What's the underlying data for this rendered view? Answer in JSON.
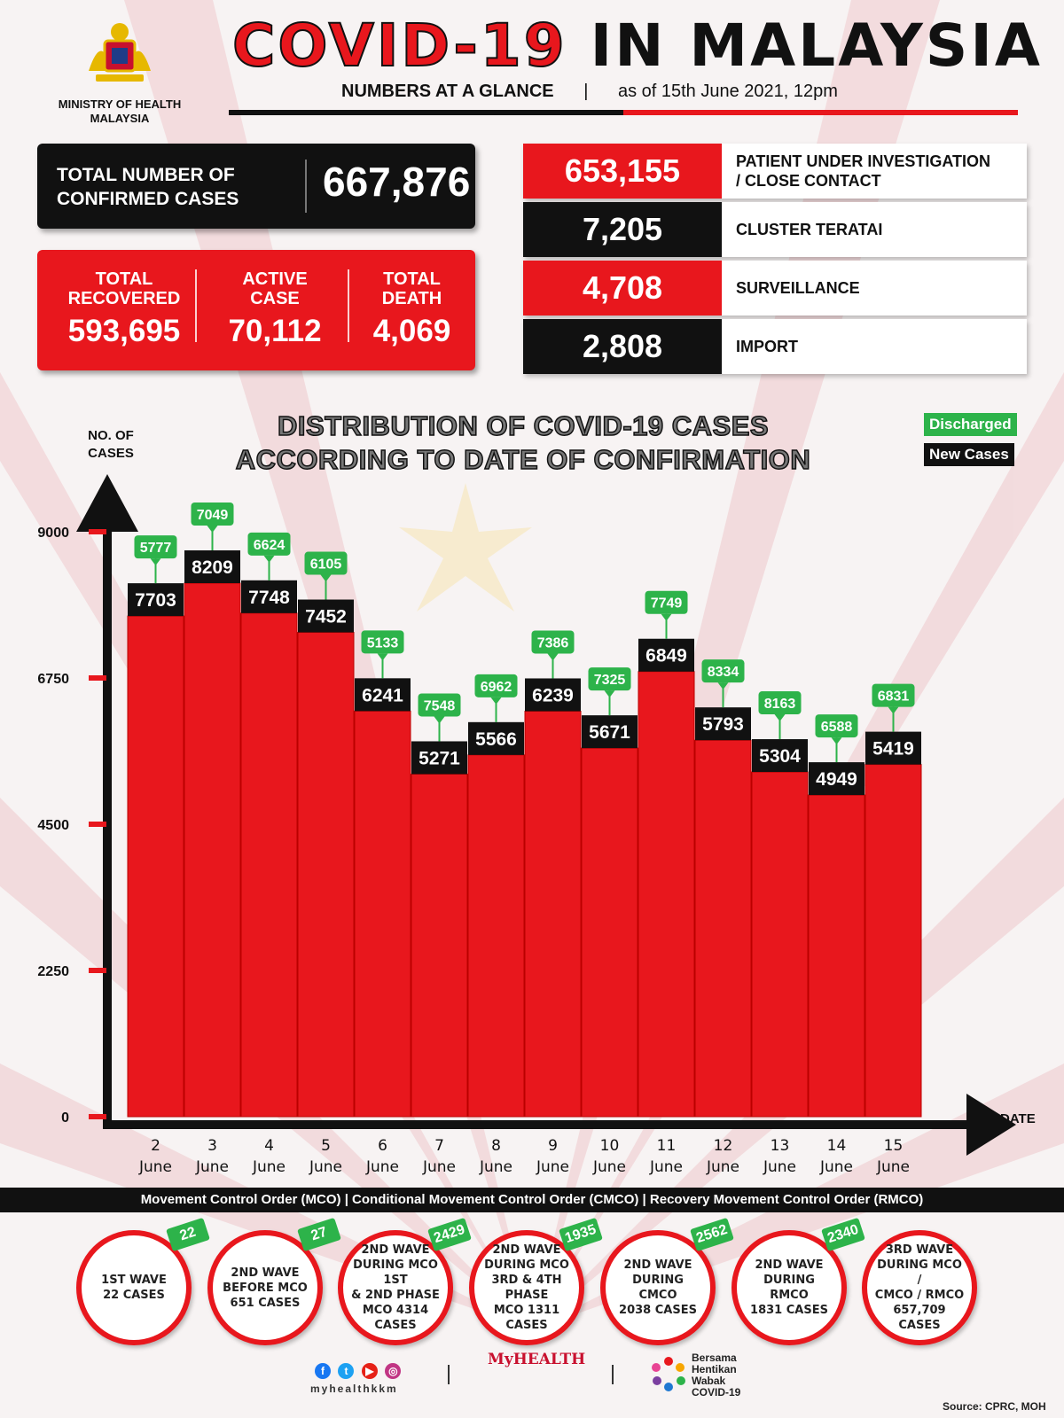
{
  "header": {
    "ministry": [
      "MINISTRY OF HEALTH",
      "MALAYSIA"
    ],
    "title_red": "COVID-19",
    "title_black": "IN MALAYSIA",
    "subtitle_bold": "NUMBERS AT A GLANCE",
    "subtitle_sep": "|",
    "subtitle_date": "as of 15th June 2021, 12pm"
  },
  "summary": {
    "confirmed_label_1": "TOTAL NUMBER OF",
    "confirmed_label_2": "CONFIRMED CASES",
    "confirmed_value": "667,876",
    "recovered_label_1": "TOTAL",
    "recovered_label_2": "RECOVERED",
    "recovered_value": "593,695",
    "active_label_1": "ACTIVE",
    "active_label_2": "CASE",
    "active_value": "70,112",
    "death_label_1": "TOTAL",
    "death_label_2": "DEATH",
    "death_value": "4,069"
  },
  "categories": [
    {
      "value": "653,155",
      "label_1": "PATIENT UNDER INVESTIGATION",
      "label_2": "/ CLOSE CONTACT",
      "color": "#e8171d"
    },
    {
      "value": "7,205",
      "label_1": "CLUSTER TERATAI",
      "label_2": "",
      "color": "#111111"
    },
    {
      "value": "4,708",
      "label_1": "SURVEILLANCE",
      "label_2": "",
      "color": "#e8171d"
    },
    {
      "value": "2,808",
      "label_1": "IMPORT",
      "label_2": "",
      "color": "#111111"
    }
  ],
  "chart_data": {
    "type": "bar",
    "title_1": "DISTRIBUTION OF COVID-19 CASES",
    "title_2": "ACCORDING TO DATE OF CONFIRMATION",
    "ylabel_1": "NO. OF",
    "ylabel_2": "CASES",
    "xlabel": "DATE",
    "ylim": [
      0,
      9000
    ],
    "yticks": [
      0,
      2250,
      4500,
      6750,
      9000
    ],
    "categories_day": [
      "2",
      "3",
      "4",
      "5",
      "6",
      "7",
      "8",
      "9",
      "10",
      "11",
      "12",
      "13",
      "14",
      "15"
    ],
    "categories_month": "June",
    "series": [
      {
        "name": "New Cases",
        "color": "#111111",
        "values": [
          7703,
          8209,
          7748,
          7452,
          6241,
          5271,
          5566,
          6239,
          5671,
          6849,
          5793,
          5304,
          4949,
          5419
        ]
      },
      {
        "name": "Discharged",
        "color": "#2db34a",
        "values": [
          5777,
          7049,
          6624,
          6105,
          5133,
          7548,
          6962,
          7386,
          7325,
          7749,
          8334,
          8163,
          6588,
          6831
        ]
      }
    ],
    "bar_color": "#e8171d",
    "legend_position": "top-right"
  },
  "mco_band": "Movement Control Order (MCO) | Conditional Movement Control Order (CMCO) | Recovery Movement Control Order (RMCO)",
  "waves": [
    {
      "text": "1ST WAVE\n22 CASES",
      "badge": "22"
    },
    {
      "text": "2ND WAVE\nBEFORE MCO\n651 CASES",
      "badge": "27"
    },
    {
      "text": "2ND WAVE\nDURING MCO 1ST\n& 2ND PHASE\nMCO 4314\nCASES",
      "badge": "2429"
    },
    {
      "text": "2ND WAVE\nDURING MCO\n3RD & 4TH PHASE\nMCO 1311\nCASES",
      "badge": "1935"
    },
    {
      "text": "2ND WAVE\nDURING CMCO\n2038 CASES",
      "badge": "2562"
    },
    {
      "text": "2ND WAVE\nDURING RMCO\n1831 CASES",
      "badge": "2340"
    },
    {
      "text": "3RD WAVE\nDURING MCO /\nCMCO / RMCO\n657,709\nCASES",
      "badge": ""
    }
  ],
  "footer": {
    "handle": "myhealthkkm",
    "myhealth": "MyHEALTH",
    "bersama": [
      "Bersama",
      "Hentikan",
      "Wabak",
      "COVID-19"
    ],
    "source": "Source: CPRC, MOH"
  },
  "colors": {
    "red": "#e8171d",
    "black": "#111111",
    "green": "#2db34a"
  }
}
